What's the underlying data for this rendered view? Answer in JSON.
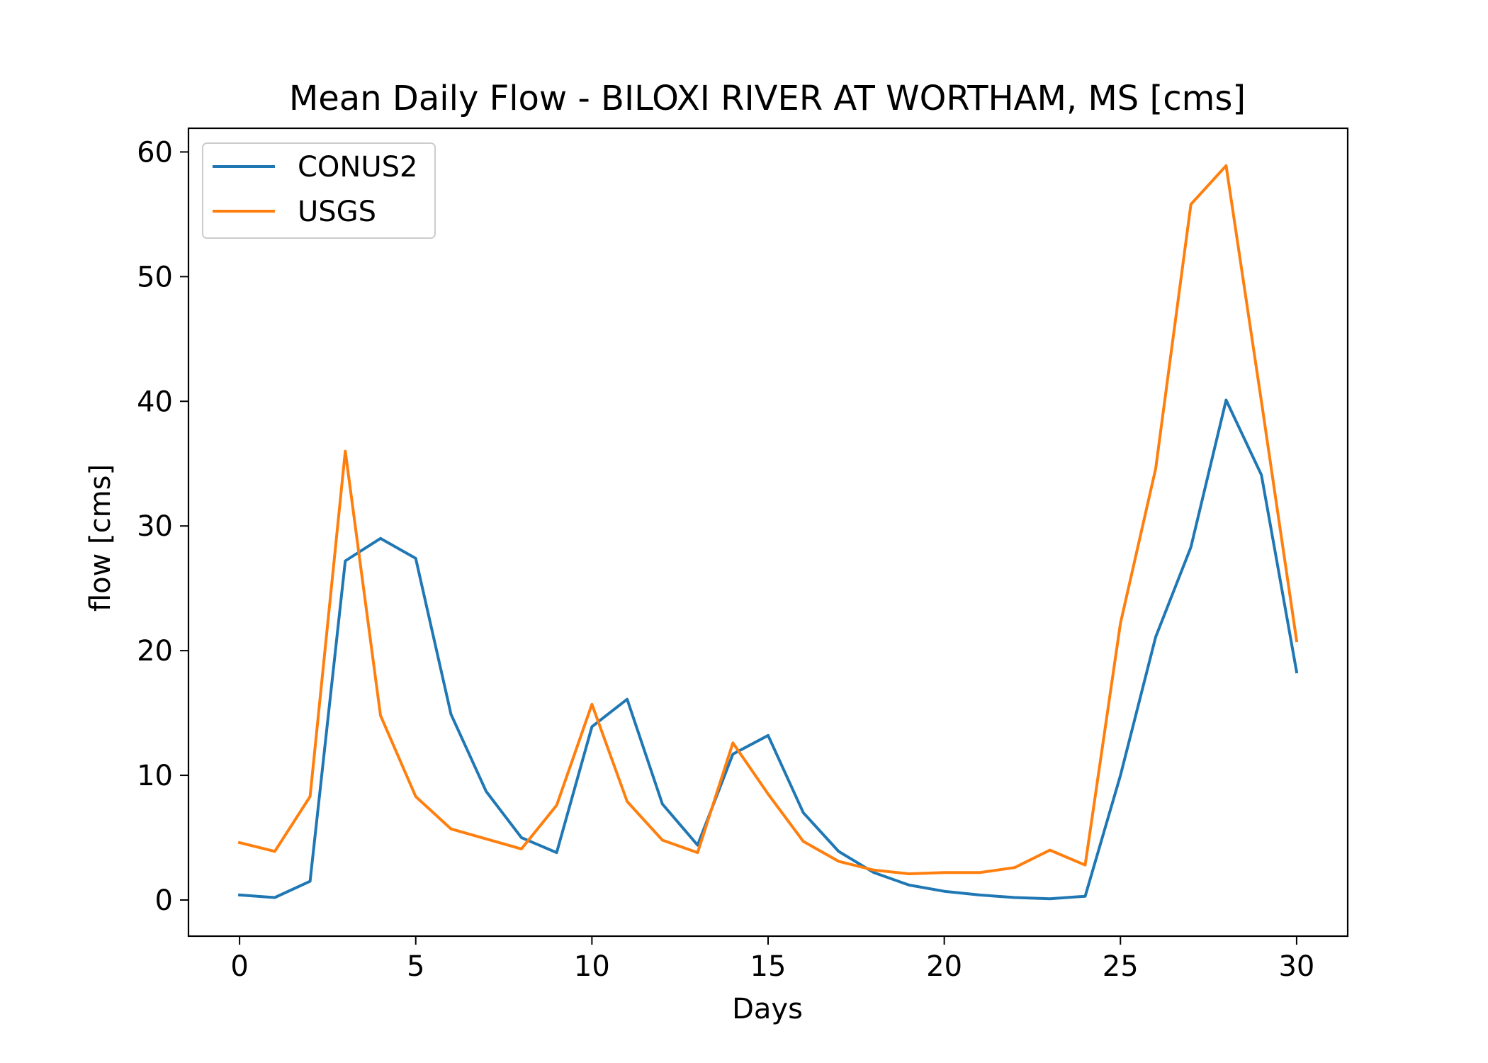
{
  "chart_data": {
    "type": "line",
    "title": "Mean Daily Flow - BILOXI RIVER AT WORTHAM, MS [cms]",
    "xlabel": "Days",
    "ylabel": "flow [cms]",
    "xlim": [
      -1.45,
      31.45
    ],
    "ylim": [
      -2.9,
      61.9
    ],
    "xticks": [
      0,
      5,
      10,
      15,
      20,
      25,
      30
    ],
    "yticks": [
      0,
      10,
      20,
      30,
      40,
      50,
      60
    ],
    "grid": false,
    "legend_position": "upper-left",
    "x": [
      0,
      1,
      2,
      3,
      4,
      5,
      6,
      7,
      8,
      9,
      10,
      11,
      12,
      13,
      14,
      15,
      16,
      17,
      18,
      19,
      20,
      21,
      22,
      23,
      24,
      25,
      26,
      27,
      28,
      29,
      30
    ],
    "series": [
      {
        "name": "CONUS2",
        "color": "#1f77b4",
        "values": [
          0.4,
          0.2,
          1.5,
          27.2,
          29.0,
          27.4,
          14.9,
          8.7,
          5.0,
          3.8,
          13.9,
          16.1,
          7.7,
          4.4,
          11.7,
          13.2,
          7.0,
          3.9,
          2.2,
          1.2,
          0.7,
          0.4,
          0.2,
          0.1,
          0.3,
          10.0,
          21.1,
          28.3,
          40.1,
          34.1,
          18.3
        ]
      },
      {
        "name": "USGS",
        "color": "#ff7f0e",
        "values": [
          4.6,
          3.9,
          8.3,
          36.0,
          14.8,
          8.3,
          5.7,
          4.9,
          4.1,
          7.6,
          15.7,
          7.9,
          4.8,
          3.8,
          12.6,
          8.5,
          4.7,
          3.1,
          2.4,
          2.1,
          2.2,
          2.2,
          2.6,
          4.0,
          2.8,
          22.2,
          34.6,
          55.8,
          58.9,
          40.0,
          20.8
        ]
      }
    ]
  }
}
